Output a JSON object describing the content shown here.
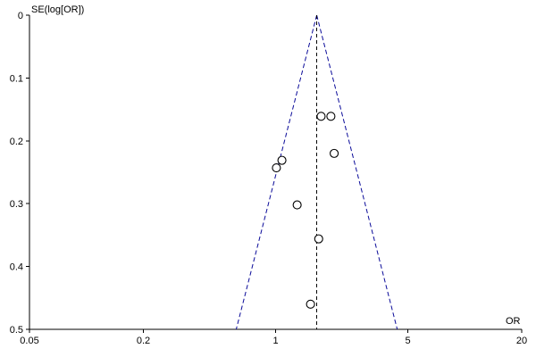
{
  "chart_data": {
    "type": "scatter",
    "subtype": "funnel-plot",
    "title": "",
    "xlabel": "OR",
    "ylabel": "SE(log[OR])",
    "x_scale": "log",
    "y_reversed": true,
    "xlim": [
      0.05,
      20
    ],
    "ylim": [
      0,
      0.5
    ],
    "x_ticks": [
      0.05,
      0.2,
      1,
      5,
      20
    ],
    "x_tick_labels": [
      "0.05",
      "0.2",
      "1",
      "5",
      "20"
    ],
    "y_ticks": [
      0,
      0.1,
      0.2,
      0.3,
      0.4,
      0.5
    ],
    "y_tick_labels": [
      "0",
      "0.1",
      "0.2",
      "0.3",
      "0.4",
      "0.5"
    ],
    "pooled_or": 1.65,
    "grid": false,
    "points": [
      {
        "or": 1.74,
        "se": 0.161
      },
      {
        "or": 1.96,
        "se": 0.161
      },
      {
        "or": 2.04,
        "se": 0.22
      },
      {
        "or": 1.08,
        "se": 0.231
      },
      {
        "or": 1.01,
        "se": 0.243
      },
      {
        "or": 1.3,
        "se": 0.302
      },
      {
        "or": 1.69,
        "se": 0.356
      },
      {
        "or": 1.53,
        "se": 0.46
      }
    ],
    "colors": {
      "axis": "#000000",
      "funnel": "#0a0a99",
      "pooled": "#000000",
      "point_fill": "#ffffff",
      "point_stroke": "#000000"
    }
  }
}
